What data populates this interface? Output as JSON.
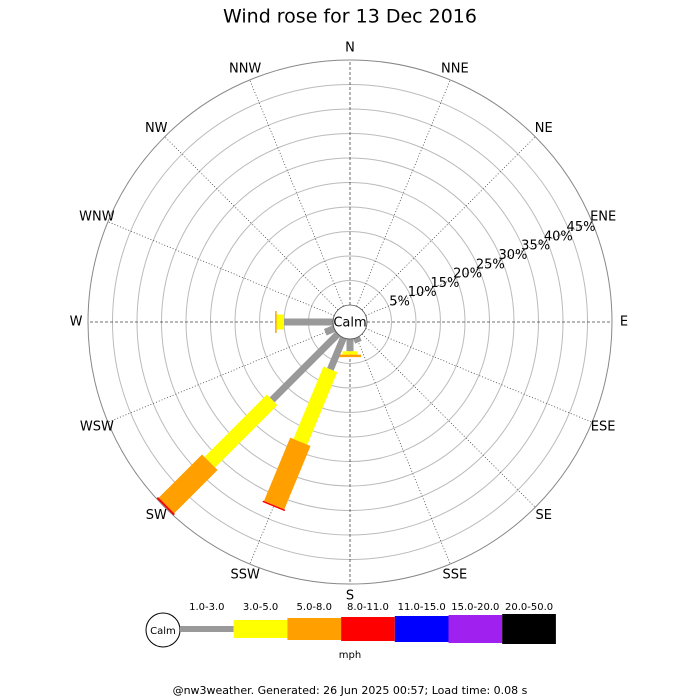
{
  "chart_data": {
    "type": "wind_rose",
    "title": "Wind rose for 13 Dec 2016",
    "calm_label": "Calm",
    "unit_label": "mph",
    "footer": "@nw3weather. Generated: 26 Jun 2025 00:57; Load time: 0.08 s",
    "categories": [
      "N",
      "NNE",
      "NE",
      "ENE",
      "E",
      "ESE",
      "SE",
      "SSE",
      "S",
      "SSW",
      "SW",
      "WSW",
      "W",
      "WNW",
      "NW",
      "NNW"
    ],
    "ylim": [
      0,
      50
    ],
    "yticks": [
      {
        "value": 5,
        "label": "5%"
      },
      {
        "value": 10,
        "label": "10%"
      },
      {
        "value": 15,
        "label": "15%"
      },
      {
        "value": 20,
        "label": "20%"
      },
      {
        "value": 25,
        "label": "25%"
      },
      {
        "value": 30,
        "label": "30%"
      },
      {
        "value": 35,
        "label": "35%"
      },
      {
        "value": 40,
        "label": "40%"
      },
      {
        "value": 45,
        "label": "45%"
      }
    ],
    "series": [
      {
        "name": "1.0-3.0",
        "color": "#999999",
        "values": [
          0,
          0,
          0,
          0,
          0,
          0,
          0,
          1,
          2.5,
          7,
          19,
          2,
          10,
          0,
          0,
          0
        ]
      },
      {
        "name": "3.0-5.0",
        "color": "#ffff00",
        "values": [
          0,
          0,
          0,
          0,
          0,
          0,
          0,
          0,
          0.7,
          16,
          18,
          0,
          1.5,
          0,
          0,
          0
        ]
      },
      {
        "name": "5.0-8.0",
        "color": "#ffa000",
        "values": [
          0,
          0,
          0,
          0,
          0,
          0,
          0,
          0,
          0.5,
          14,
          12.5,
          0,
          0.3,
          0,
          0,
          0
        ]
      },
      {
        "name": "8.0-11.0",
        "color": "#ff0000",
        "values": [
          0,
          0,
          0,
          0,
          0,
          0,
          0,
          0,
          0,
          0.3,
          0.4,
          0,
          0,
          0,
          0,
          0
        ]
      },
      {
        "name": "11.0-15.0",
        "color": "#0000ff",
        "values": [
          0,
          0,
          0,
          0,
          0,
          0,
          0,
          0,
          0,
          0,
          0,
          0,
          0,
          0,
          0,
          0
        ]
      },
      {
        "name": "15.0-20.0",
        "color": "#a020f0",
        "values": [
          0,
          0,
          0,
          0,
          0,
          0,
          0,
          0,
          0,
          0,
          0,
          0,
          0,
          0,
          0,
          0
        ]
      },
      {
        "name": "20.0-50.0",
        "color": "#000000",
        "values": [
          0,
          0,
          0,
          0,
          0,
          0,
          0,
          0,
          0,
          0,
          0,
          0,
          0,
          0,
          0,
          0
        ]
      }
    ]
  }
}
